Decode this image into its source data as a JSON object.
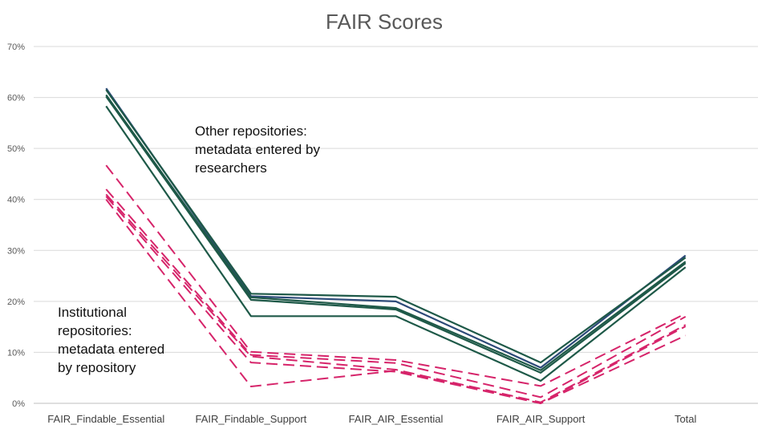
{
  "chart_data": {
    "type": "line",
    "title": "FAIR Scores",
    "xlabel": "",
    "ylabel": "",
    "categories": [
      "FAIR_Findable_Essential",
      "FAIR_Findable_Support",
      "FAIR_AIR_Essential",
      "FAIR_AIR_Support",
      "Total"
    ],
    "ylim": [
      0,
      70
    ],
    "yticks": [
      "0%",
      "10%",
      "20%",
      "30%",
      "40%",
      "50%",
      "60%",
      "70%"
    ],
    "grid": true,
    "legend": "none",
    "colors": {
      "other": "#1e5948",
      "other_alt": "#2c4a78",
      "institutional": "#d6246a"
    },
    "series": [
      {
        "group": "other",
        "values": [
          61.8,
          21.0,
          20.0,
          7.0,
          29.0
        ],
        "color": "#2c4a78",
        "style": "solid"
      },
      {
        "group": "other",
        "values": [
          61.5,
          21.5,
          20.9,
          8.0,
          28.6
        ],
        "color": "#1e5948",
        "style": "solid"
      },
      {
        "group": "other",
        "values": [
          60.5,
          20.8,
          18.7,
          6.5,
          27.8
        ],
        "color": "#1e5948",
        "style": "solid"
      },
      {
        "group": "other",
        "values": [
          60.2,
          20.3,
          18.4,
          6.0,
          27.5
        ],
        "color": "#1e5948",
        "style": "solid"
      },
      {
        "group": "other",
        "values": [
          58.3,
          17.1,
          17.1,
          4.4,
          26.7
        ],
        "color": "#1e5948",
        "style": "solid"
      },
      {
        "group": "institutional",
        "values": [
          46.7,
          10.1,
          8.5,
          3.4,
          17.6
        ],
        "color": "#d6246a",
        "style": "dashed"
      },
      {
        "group": "institutional",
        "values": [
          42.0,
          9.5,
          7.9,
          1.2,
          17.0
        ],
        "color": "#d6246a",
        "style": "dashed"
      },
      {
        "group": "institutional",
        "values": [
          41.0,
          9.2,
          6.6,
          0.2,
          15.4
        ],
        "color": "#d6246a",
        "style": "dashed"
      },
      {
        "group": "institutional",
        "values": [
          40.6,
          8.0,
          6.2,
          0.0,
          15.1
        ],
        "color": "#d6246a",
        "style": "dashed"
      },
      {
        "group": "institutional",
        "values": [
          40.0,
          3.3,
          6.4,
          0.0,
          13.3
        ],
        "color": "#d6246a",
        "style": "dashed"
      }
    ],
    "annotations": [
      {
        "id": "other",
        "text": "Other repositories:\nmetadata entered by\nresearchers"
      },
      {
        "id": "institutional",
        "text": "Institutional\nrepositories:\nmetadata entered\nby repository"
      }
    ]
  }
}
